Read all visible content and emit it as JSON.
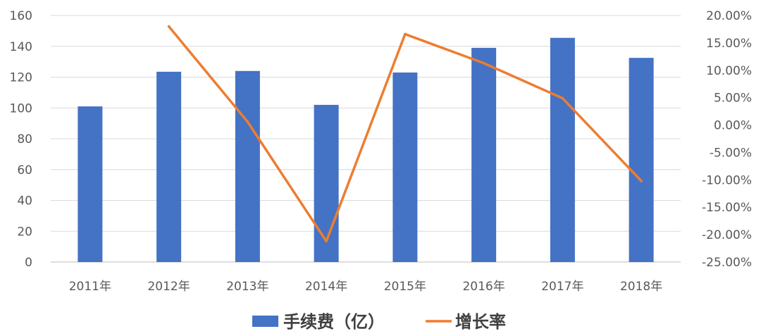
{
  "chart_data": {
    "type": "bar",
    "categories": [
      "2011年",
      "2012年",
      "2013年",
      "2014年",
      "2015年",
      "2016年",
      "2017年",
      "2018年"
    ],
    "series": [
      {
        "name": "手续费（亿）",
        "type": "bar",
        "axis": "left",
        "color": "#4472c4",
        "values": [
          101,
          123.5,
          124,
          102,
          123,
          139,
          145.5,
          132.5
        ]
      },
      {
        "name": "增长率",
        "type": "line",
        "axis": "right",
        "color": "#ed7d31",
        "values": [
          null,
          18.0,
          0.6,
          -21.2,
          16.6,
          11.3,
          4.9,
          -10.2
        ]
      }
    ],
    "y_left": {
      "range": [
        0,
        160
      ],
      "ticks": [
        0,
        20,
        40,
        60,
        80,
        100,
        120,
        140,
        160
      ],
      "tick_labels": [
        "0",
        "20",
        "40",
        "60",
        "80",
        "100",
        "120",
        "140",
        "160"
      ]
    },
    "y_right": {
      "range": [
        -25,
        20
      ],
      "ticks": [
        -25,
        -20,
        -15,
        -10,
        -5,
        0,
        5,
        10,
        15,
        20
      ],
      "tick_labels": [
        "-25.00%",
        "-20.00%",
        "-15.00%",
        "-10.00%",
        "-5.00%",
        "0.00%",
        "5.00%",
        "10.00%",
        "15.00%",
        "20.00%"
      ]
    },
    "grid": true,
    "legend_position": "bottom"
  }
}
